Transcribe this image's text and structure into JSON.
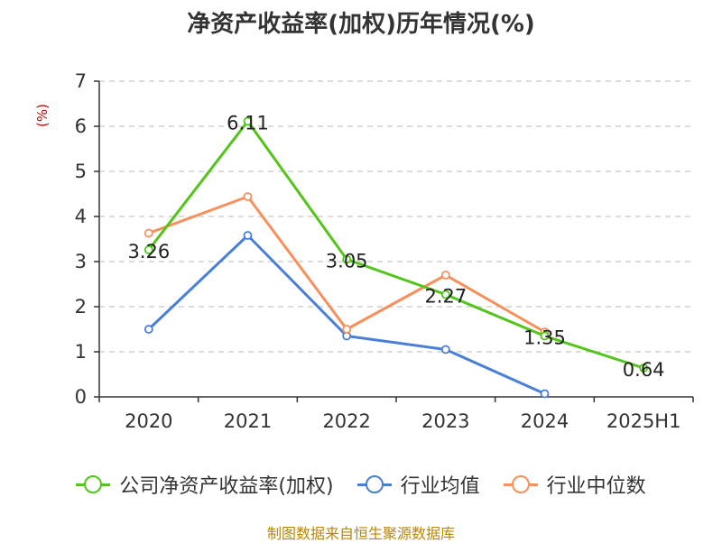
{
  "chart_data": {
    "type": "line",
    "title": "净资产收益率(加权)历年情况(%)",
    "ylabel": "(%)",
    "categories": [
      "2020",
      "2021",
      "2022",
      "2023",
      "2024",
      "2025H1"
    ],
    "ylim": [
      0,
      7
    ],
    "yticks": [
      0,
      1,
      2,
      3,
      4,
      5,
      6,
      7
    ],
    "grid": true,
    "legend_position": "bottom",
    "series": [
      {
        "name": "公司净资产收益率(加权)",
        "color": "#52c41a",
        "values": [
          3.26,
          6.11,
          3.05,
          2.27,
          1.35,
          0.64
        ],
        "labels": [
          "3.26",
          "6.11",
          "3.05",
          "2.27",
          "1.35",
          "0.64"
        ]
      },
      {
        "name": "行业均值",
        "color": "#4a7fd6",
        "values": [
          1.5,
          3.58,
          1.35,
          1.05,
          0.07,
          null
        ]
      },
      {
        "name": "行业中位数",
        "color": "#f7905a",
        "values": [
          3.63,
          4.44,
          1.5,
          2.7,
          1.44,
          null
        ]
      }
    ]
  },
  "source": "制图数据来自恒生聚源数据库"
}
